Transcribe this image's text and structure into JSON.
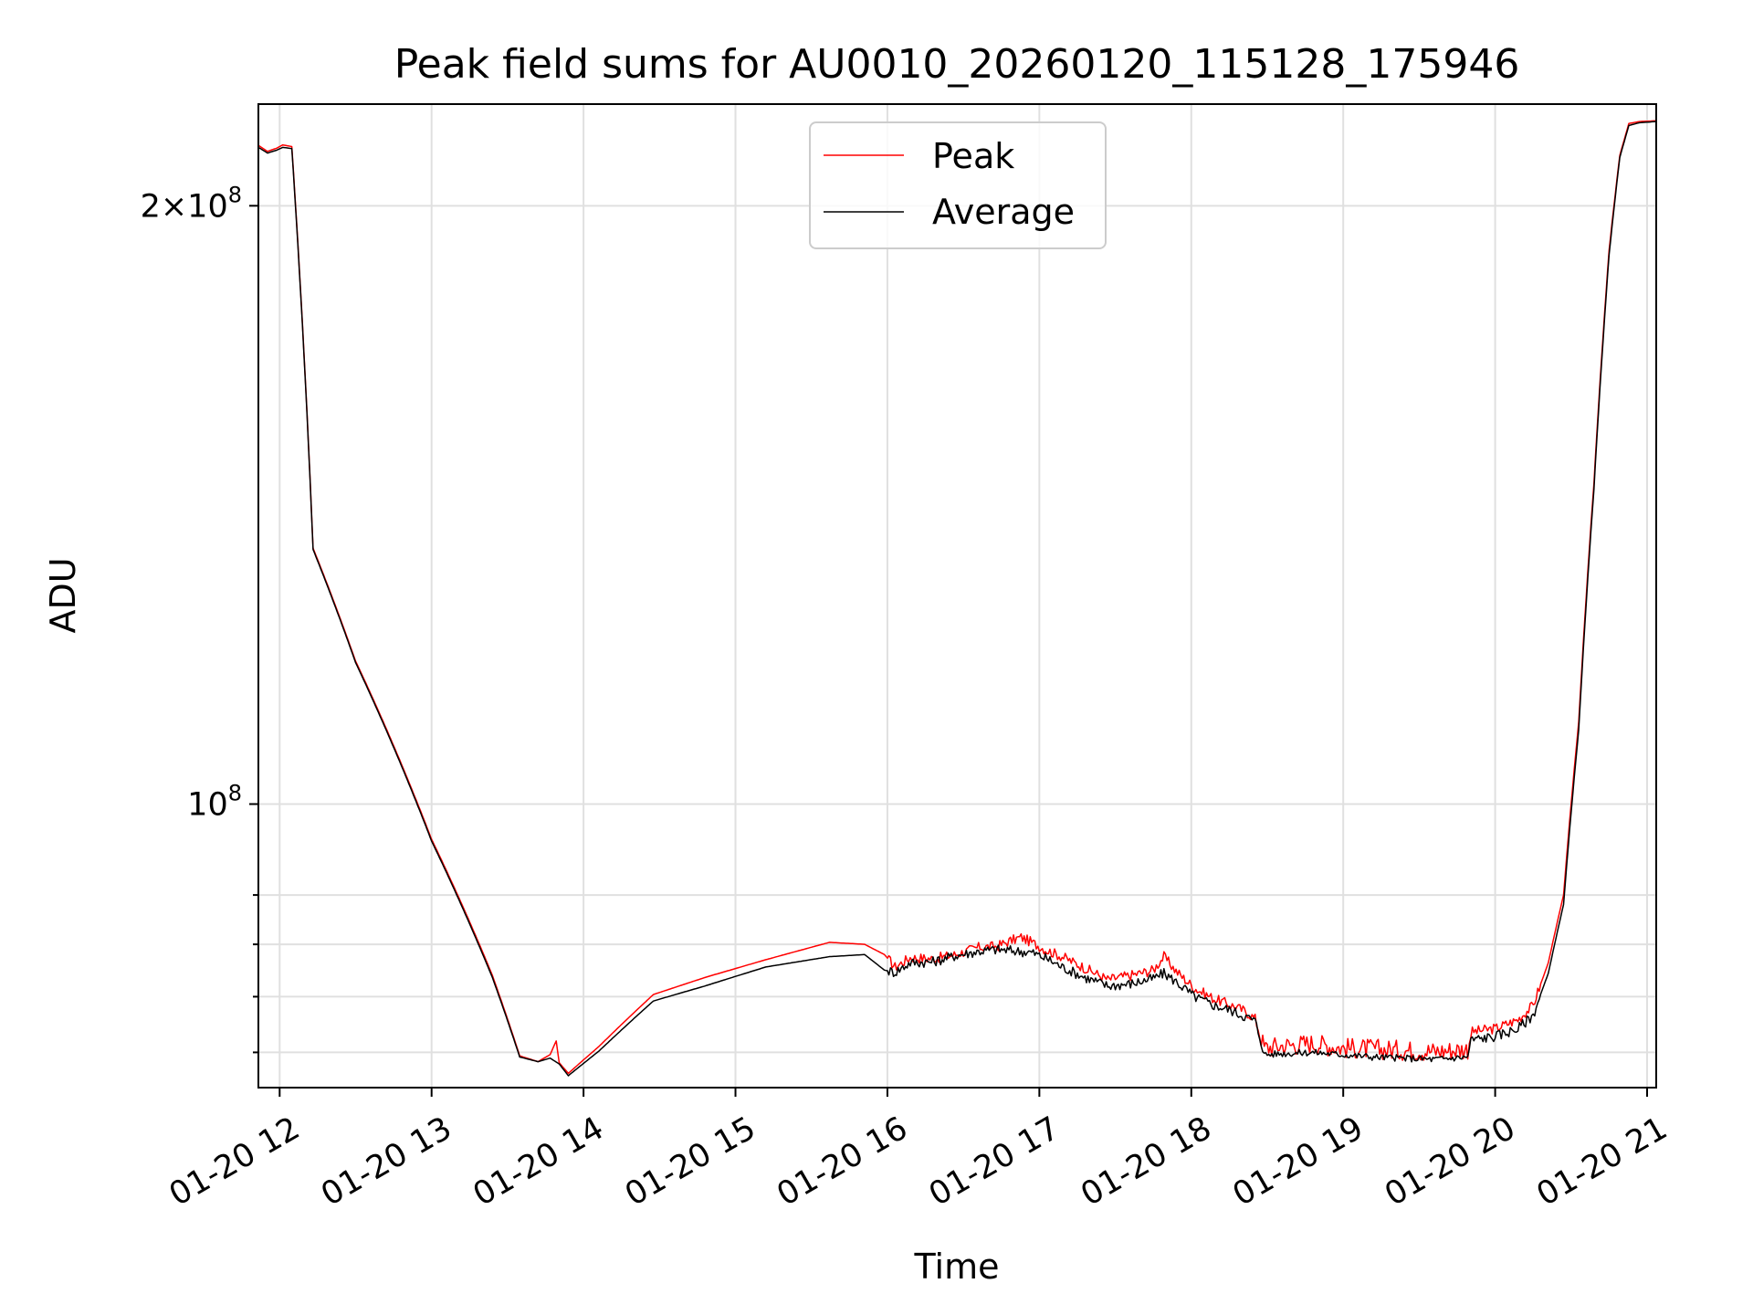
{
  "chart_data": {
    "type": "line",
    "title": "Peak field sums for AU0010_20260120_115128_175946",
    "xlabel": "Time",
    "ylabel": "ADU",
    "yscale": "log",
    "grid": true,
    "legend_position": "top-center",
    "x_unit": "hours (2026-01-20)",
    "xlim": [
      11.86,
      21.06
    ],
    "ylim": [
      72000000,
      225000000
    ],
    "x_ticks": [
      {
        "value": 12,
        "label": "01-20 12"
      },
      {
        "value": 13,
        "label": "01-20 13"
      },
      {
        "value": 14,
        "label": "01-20 14"
      },
      {
        "value": 15,
        "label": "01-20 15"
      },
      {
        "value": 16,
        "label": "01-20 16"
      },
      {
        "value": 17,
        "label": "01-20 17"
      },
      {
        "value": 18,
        "label": "01-20 18"
      },
      {
        "value": 19,
        "label": "01-20 19"
      },
      {
        "value": 20,
        "label": "01-20 20"
      },
      {
        "value": 21,
        "label": "01-20 21"
      }
    ],
    "y_ticks_major": [
      {
        "value": 100000000,
        "base": "10",
        "exp": "8",
        "prefix": ""
      },
      {
        "value": 200000000,
        "base": "10",
        "exp": "8",
        "prefix": "2×"
      }
    ],
    "y_ticks_minor": [
      75000000,
      80000000,
      85000000,
      90000000
    ],
    "series": [
      {
        "name": "Peak",
        "color": "#ff0000",
        "points": [
          [
            11.86,
            214500000
          ],
          [
            11.92,
            213000000
          ],
          [
            11.98,
            213800000
          ],
          [
            12.02,
            214600000
          ],
          [
            12.08,
            214200000
          ],
          [
            12.22,
            134500000
          ],
          [
            12.5,
            118000000
          ],
          [
            13.0,
            96000000
          ],
          [
            13.4,
            82000000
          ],
          [
            13.58,
            74700000
          ],
          [
            13.7,
            74200000
          ],
          [
            13.78,
            74800000
          ],
          [
            13.82,
            76000000
          ],
          [
            13.84,
            74100000
          ],
          [
            13.9,
            73200000
          ],
          [
            14.1,
            75500000
          ],
          [
            14.46,
            80200000
          ],
          [
            14.8,
            81800000
          ],
          [
            15.2,
            83500000
          ],
          [
            15.62,
            85200000
          ],
          [
            15.85,
            85000000
          ],
          [
            15.98,
            84000000
          ],
          [
            16.05,
            82800000
          ],
          [
            16.15,
            83700000
          ],
          [
            16.3,
            83600000
          ],
          [
            16.45,
            84000000
          ],
          [
            16.6,
            84700000
          ],
          [
            16.72,
            84800000
          ],
          [
            16.8,
            85300000
          ],
          [
            16.88,
            85700000
          ],
          [
            16.95,
            85200000
          ],
          [
            17.05,
            84400000
          ],
          [
            17.15,
            83800000
          ],
          [
            17.3,
            82700000
          ],
          [
            17.45,
            81600000
          ],
          [
            17.6,
            82000000
          ],
          [
            17.75,
            82500000
          ],
          [
            17.82,
            83800000
          ],
          [
            17.9,
            82400000
          ],
          [
            18.02,
            80800000
          ],
          [
            18.15,
            79800000
          ],
          [
            18.25,
            79300000
          ],
          [
            18.35,
            78700000
          ],
          [
            18.42,
            78000000
          ],
          [
            18.48,
            75400000
          ],
          [
            18.6,
            75600000
          ],
          [
            18.8,
            75800000
          ],
          [
            19.0,
            75400000
          ],
          [
            19.2,
            75300000
          ],
          [
            19.4,
            75200000
          ],
          [
            19.6,
            75100000
          ],
          [
            19.82,
            75300000
          ],
          [
            19.84,
            76800000
          ],
          [
            20.0,
            77100000
          ],
          [
            20.15,
            77900000
          ],
          [
            20.25,
            79200000
          ],
          [
            20.35,
            83200000
          ],
          [
            20.45,
            90000000
          ],
          [
            20.55,
            110000000
          ],
          [
            20.65,
            145000000
          ],
          [
            20.75,
            190000000
          ],
          [
            20.82,
            212000000
          ],
          [
            20.88,
            220000000
          ],
          [
            20.95,
            220500000
          ],
          [
            21.06,
            220700000
          ]
        ]
      },
      {
        "name": "Average",
        "color": "#000000",
        "points": [
          [
            11.86,
            214000000
          ],
          [
            11.92,
            212600000
          ],
          [
            11.98,
            213300000
          ],
          [
            12.02,
            214000000
          ],
          [
            12.08,
            213700000
          ],
          [
            12.22,
            134300000
          ],
          [
            12.5,
            117800000
          ],
          [
            13.0,
            95800000
          ],
          [
            13.4,
            81800000
          ],
          [
            13.58,
            74600000
          ],
          [
            13.7,
            74200000
          ],
          [
            13.78,
            74500000
          ],
          [
            13.84,
            74000000
          ],
          [
            13.9,
            73000000
          ],
          [
            14.1,
            75100000
          ],
          [
            14.46,
            79600000
          ],
          [
            14.8,
            81000000
          ],
          [
            15.2,
            82800000
          ],
          [
            15.62,
            83800000
          ],
          [
            15.85,
            84000000
          ],
          [
            15.98,
            82500000
          ],
          [
            16.05,
            82300000
          ],
          [
            16.15,
            83200000
          ],
          [
            16.3,
            83300000
          ],
          [
            16.45,
            83900000
          ],
          [
            16.6,
            84300000
          ],
          [
            16.72,
            84500000
          ],
          [
            16.8,
            84400000
          ],
          [
            16.88,
            84300000
          ],
          [
            16.95,
            84200000
          ],
          [
            17.05,
            83600000
          ],
          [
            17.15,
            82800000
          ],
          [
            17.3,
            81800000
          ],
          [
            17.45,
            81000000
          ],
          [
            17.6,
            81200000
          ],
          [
            17.75,
            81700000
          ],
          [
            17.82,
            82200000
          ],
          [
            17.9,
            81400000
          ],
          [
            18.02,
            80000000
          ],
          [
            18.15,
            79200000
          ],
          [
            18.25,
            78800000
          ],
          [
            18.35,
            78200000
          ],
          [
            18.42,
            77800000
          ],
          [
            18.48,
            74800000
          ],
          [
            18.6,
            74900000
          ],
          [
            18.8,
            75000000
          ],
          [
            19.0,
            74800000
          ],
          [
            19.2,
            74600000
          ],
          [
            19.4,
            74500000
          ],
          [
            19.6,
            74400000
          ],
          [
            19.82,
            74600000
          ],
          [
            19.84,
            76100000
          ],
          [
            20.0,
            76400000
          ],
          [
            20.15,
            77100000
          ],
          [
            20.25,
            78300000
          ],
          [
            20.35,
            82200000
          ],
          [
            20.45,
            89000000
          ],
          [
            20.55,
            109000000
          ],
          [
            20.65,
            144000000
          ],
          [
            20.75,
            189000000
          ],
          [
            20.82,
            211500000
          ],
          [
            20.88,
            219500000
          ],
          [
            20.95,
            220200000
          ],
          [
            21.06,
            220500000
          ]
        ]
      }
    ]
  }
}
